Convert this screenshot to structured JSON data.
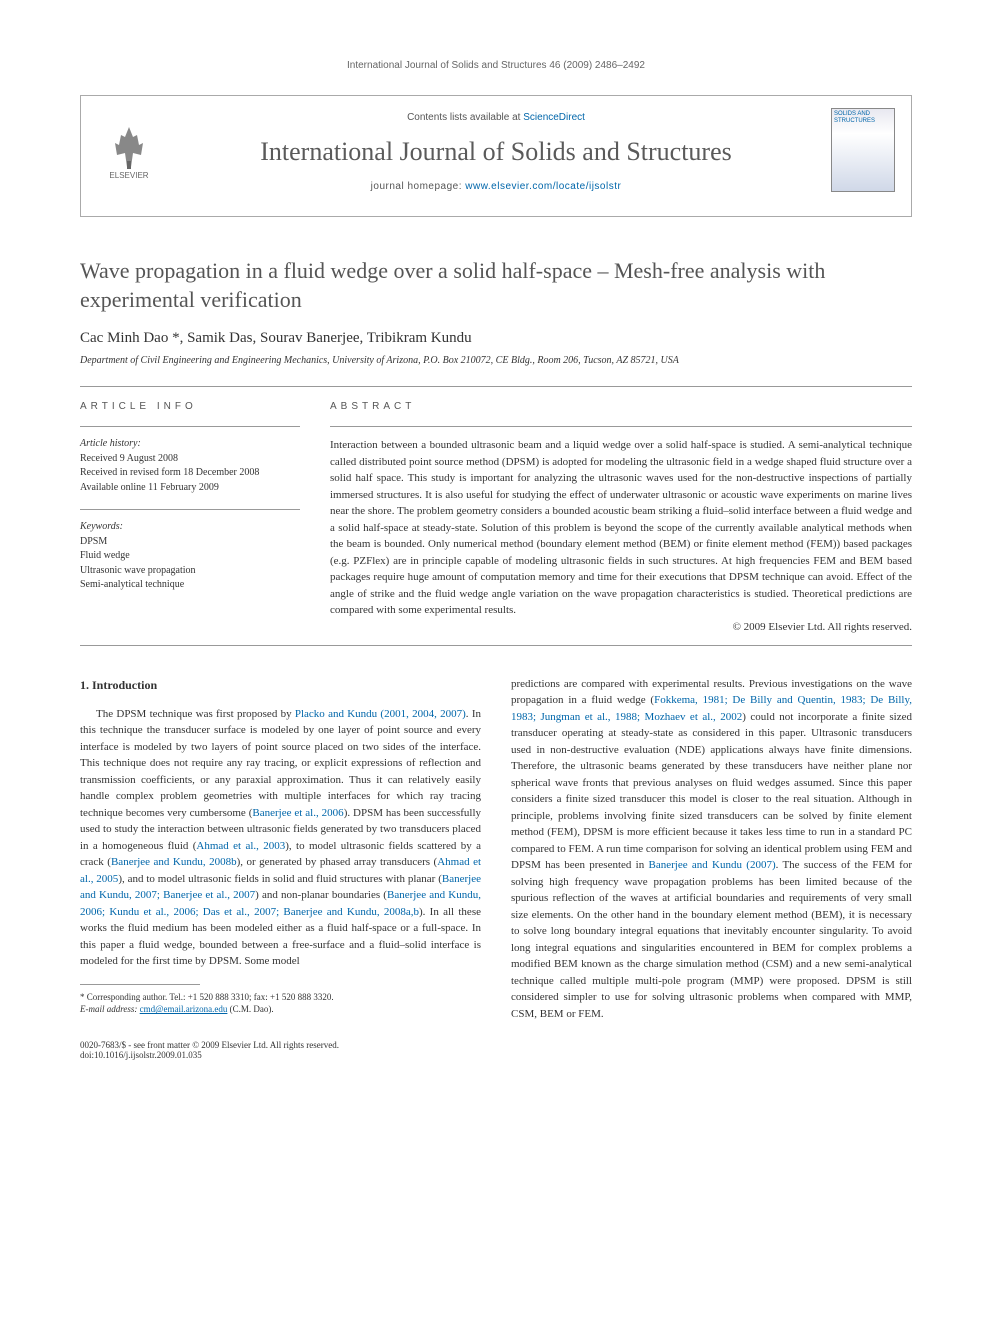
{
  "running_header": "International Journal of Solids and Structures 46 (2009) 2486–2492",
  "banner": {
    "contents_prefix": "Contents lists available at ",
    "contents_link": "ScienceDirect",
    "journal_name": "International Journal of Solids and Structures",
    "homepage_prefix": "journal homepage: ",
    "homepage_url": "www.elsevier.com/locate/ijsolstr",
    "publisher": "ELSEVIER",
    "cover_text": "SOLIDS AND STRUCTURES"
  },
  "title": "Wave propagation in a fluid wedge over a solid half-space – Mesh-free analysis with experimental verification",
  "authors": "Cac Minh Dao *, Samik Das, Sourav Banerjee, Tribikram Kundu",
  "affiliation": "Department of Civil Engineering and Engineering Mechanics, University of Arizona, P.O. Box 210072, CE Bldg., Room 206, Tucson, AZ 85721, USA",
  "labels": {
    "article_info": "ARTICLE INFO",
    "abstract": "ABSTRACT"
  },
  "article_info": {
    "history_heading": "Article history:",
    "received": "Received 9 August 2008",
    "revised": "Received in revised form 18 December 2008",
    "online": "Available online 11 February 2009",
    "keywords_heading": "Keywords:",
    "kw1": "DPSM",
    "kw2": "Fluid wedge",
    "kw3": "Ultrasonic wave propagation",
    "kw4": "Semi-analytical technique"
  },
  "abstract": "Interaction between a bounded ultrasonic beam and a liquid wedge over a solid half-space is studied. A semi-analytical technique called distributed point source method (DPSM) is adopted for modeling the ultrasonic field in a wedge shaped fluid structure over a solid half space. This study is important for analyzing the ultrasonic waves used for the non-destructive inspections of partially immersed structures. It is also useful for studying the effect of underwater ultrasonic or acoustic wave experiments on marine lives near the shore. The problem geometry considers a bounded acoustic beam striking a fluid–solid interface between a fluid wedge and a solid half-space at steady-state. Solution of this problem is beyond the scope of the currently available analytical methods when the beam is bounded. Only numerical method (boundary element method (BEM) or finite element method (FEM)) based packages (e.g. PZFlex) are in principle capable of modeling ultrasonic fields in such structures. At high frequencies FEM and BEM based packages require huge amount of computation memory and time for their executions that DPSM technique can avoid. Effect of the angle of strike and the fluid wedge angle variation on the wave propagation characteristics is studied. Theoretical predictions are compared with some experimental results.",
  "copyright": "© 2009 Elsevier Ltd. All rights reserved.",
  "intro_heading": "1. Introduction",
  "col1_para": "The DPSM technique was first proposed by <span class=\"cite\">Placko and Kundu (2001, 2004, 2007)</span>. In this technique the transducer surface is modeled by one layer of point source and every interface is modeled by two layers of point source placed on two sides of the interface. This technique does not require any ray tracing, or explicit expressions of reflection and transmission coefficients, or any paraxial approximation. Thus it can relatively easily handle complex problem geometries with multiple interfaces for which ray tracing technique becomes very cumbersome (<span class=\"cite\">Banerjee et al., 2006</span>). DPSM has been successfully used to study the interaction between ultrasonic fields generated by two transducers placed in a homogeneous fluid (<span class=\"cite\">Ahmad et al., 2003</span>), to model ultrasonic fields scattered by a crack (<span class=\"cite\">Banerjee and Kundu, 2008b</span>), or generated by phased array transducers (<span class=\"cite\">Ahmad et al., 2005</span>), and to model ultrasonic fields in solid and fluid structures with planar (<span class=\"cite\">Banerjee and Kundu, 2007; Banerjee et al., 2007</span>) and non-planar boundaries (<span class=\"cite\">Banerjee and Kundu, 2006; Kundu et al., 2006; Das et al., 2007; Banerjee and Kundu, 2008a,b</span>). In all these works the fluid medium has been modeled either as a fluid half-space or a full-space. In this paper a fluid wedge, bounded between a free-surface and a fluid–solid interface is modeled for the first time by DPSM. Some model",
  "col2_para": "predictions are compared with experimental results. Previous investigations on the wave propagation in a fluid wedge (<span class=\"cite\">Fokkema, 1981; De Billy and Quentin, 1983; De Billy, 1983; Jungman et al., 1988; Mozhaev et al., 2002</span>) could not incorporate a finite sized transducer operating at steady-state as considered in this paper. Ultrasonic transducers used in non-destructive evaluation (NDE) applications always have finite dimensions. Therefore, the ultrasonic beams generated by these transducers have neither plane nor spherical wave fronts that previous analyses on fluid wedges assumed. Since this paper considers a finite sized transducer this model is closer to the real situation. Although in principle, problems involving finite sized transducers can be solved by finite element method (FEM), DPSM is more efficient because it takes less time to run in a standard PC compared to FEM. A run time comparison for solving an identical problem using FEM and DPSM has been presented in <span class=\"cite\">Banerjee and Kundu (2007)</span>. The success of the FEM for solving high frequency wave propagation problems has been limited because of the spurious reflection of the waves at artificial boundaries and requirements of very small size elements. On the other hand in the boundary element method (BEM), it is necessary to solve long boundary integral equations that inevitably encounter singularity. To avoid long integral equations and singularities encountered in BEM for complex problems a modified BEM known as the charge simulation method (CSM) and a new semi-analytical technique called multiple multi-pole program (MMP) were proposed. DPSM is still considered simpler to use for solving ultrasonic problems when compared with MMP, CSM, BEM or FEM.",
  "footnote": {
    "corr": "* Corresponding author. Tel.: +1 520 888 3310; fax: +1 520 888 3320.",
    "email_label": "E-mail address:",
    "email": "cmd@email.arizona.edu",
    "email_suffix": "(C.M. Dao)."
  },
  "footer": {
    "left1": "0020-7683/$ - see front matter © 2009 Elsevier Ltd. All rights reserved.",
    "left2": "doi:10.1016/j.ijsolstr.2009.01.035"
  },
  "colors": {
    "link": "#0066aa",
    "text": "#333333",
    "heading_gray": "#555555",
    "rule": "#999999",
    "background": "#ffffff"
  }
}
